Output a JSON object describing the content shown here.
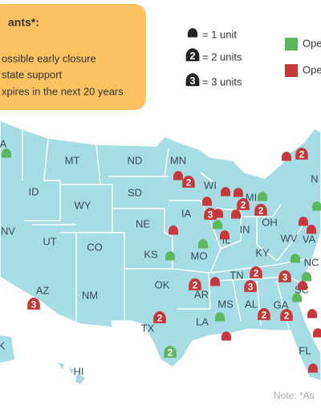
{
  "legend_box": {
    "title": "ants*:",
    "items": [
      "ossible early closure",
      "state support",
      "xpires in the next 20 years"
    ]
  },
  "unit_legend": [
    {
      "icon": null,
      "text": "= 1 unit"
    },
    {
      "icon": "2",
      "text": "= 2 units"
    },
    {
      "icon": "3",
      "text": "= 3 units"
    }
  ],
  "status_legend": [
    {
      "color": "#5cb85c",
      "text": "Ope"
    },
    {
      "color": "#c8373a",
      "text": "Ope"
    }
  ],
  "states": [
    "WA",
    "MT",
    "ND",
    "MN",
    "ID",
    "SD",
    "WI",
    "WY",
    "MI",
    "IA",
    "NE",
    "NV",
    "UT",
    "CO",
    "IL",
    "IN",
    "OH",
    "N",
    "KS",
    "MO",
    "KY",
    "WV",
    "VA",
    "NC",
    "TN",
    "OK",
    "AR",
    "SC",
    "AZ",
    "NM",
    "MS",
    "AL",
    "GA",
    "TX",
    "LA",
    "FL",
    "HI",
    "K"
  ],
  "markers": [
    {
      "color": "#5cb85c"
    },
    {
      "color": "#5cb85c"
    },
    {
      "color": "#5cb85c"
    },
    {
      "color": "#5cb85c"
    },
    {
      "color": "#5cb85c"
    },
    {
      "color": "#5cb85c"
    },
    {
      "color": "#5cb85c",
      "label": "2"
    },
    {
      "color": "#5cb85c"
    },
    {
      "color": "#5cb85c"
    },
    {
      "color": "#5cb85c"
    },
    {
      "color": "#5cb85c"
    },
    {
      "color": "#c8373a"
    },
    {
      "color": "#c8373a",
      "label": "2"
    },
    {
      "color": "#c8373a"
    },
    {
      "color": "#c8373a",
      "label": "2"
    },
    {
      "color": "#c8373a"
    },
    {
      "color": "#c8373a"
    },
    {
      "color": "#c8373a",
      "label": "2"
    },
    {
      "color": "#c8373a",
      "label": "2"
    },
    {
      "color": "#c8373a",
      "label": "3"
    },
    {
      "color": "#c8373a"
    },
    {
      "color": "#c8373a"
    },
    {
      "color": "#c8373a"
    },
    {
      "color": "#c8373a"
    },
    {
      "color": "#c8373a"
    },
    {
      "color": "#c8373a",
      "label": "2"
    },
    {
      "color": "#c8373a"
    },
    {
      "color": "#c8373a",
      "label": "3"
    },
    {
      "color": "#c8373a",
      "label": "2"
    },
    {
      "color": "#c8373a",
      "label": "3"
    },
    {
      "color": "#c8373a"
    },
    {
      "color": "#c8373a"
    },
    {
      "color": "#c8373a"
    },
    {
      "color": "#c8373a",
      "label": "2"
    },
    {
      "color": "#c8373a",
      "label": "2"
    },
    {
      "color": "#c8373a"
    },
    {
      "color": "#c8373a",
      "label": "2"
    },
    {
      "color": "#c8373a"
    },
    {
      "color": "#c8373a",
      "label": "3"
    },
    {
      "color": "#c8373a"
    },
    {
      "color": "#c8373a"
    }
  ],
  "note": "Note: *As"
}
